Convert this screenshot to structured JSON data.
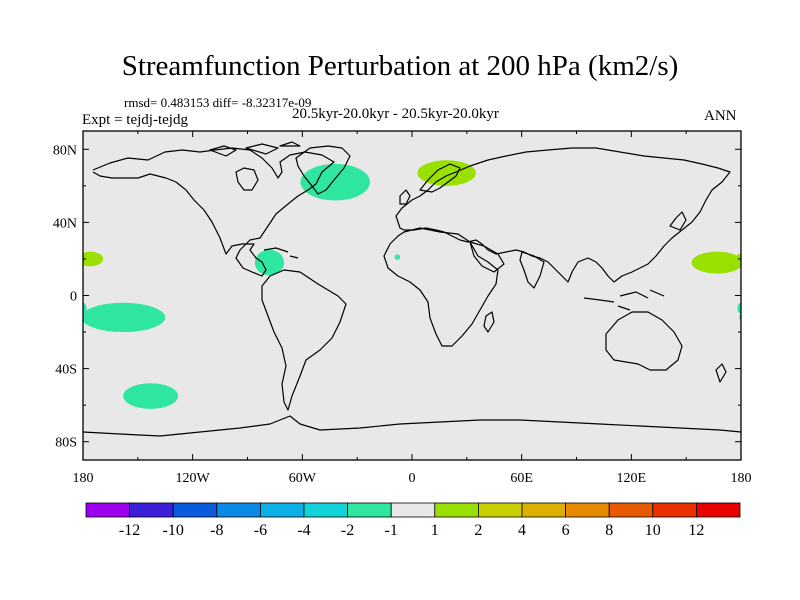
{
  "title": "Streamfunction Perturbation at 200 hPa (km2/s)",
  "stats": "rmsd= 0.483153 diff= -8.32317e-09",
  "period": "20.5kyr-20.0kyr - 20.5kyr-20.0kyr",
  "experiment": "Expt = tejdj-tejdg",
  "season": "ANN",
  "colors": {
    "background": "#e8e8e8",
    "coastline": "#000000",
    "negative_small": "#2ee6a0",
    "positive_small": "#99e000"
  },
  "axes": {
    "latitude_ticks": [
      "80N",
      "40N",
      "0",
      "40S",
      "80S"
    ],
    "longitude_ticks": [
      "180",
      "120W",
      "60W",
      "0",
      "60E",
      "120E",
      "180"
    ]
  },
  "colorbar": {
    "labels": [
      "-12",
      "-10",
      "-8",
      "-6",
      "-4",
      "-2",
      "-1",
      "1",
      "2",
      "4",
      "6",
      "8",
      "10",
      "12"
    ],
    "colors": [
      "#9c00ee",
      "#3a1ed8",
      "#0a5ae0",
      "#0a8ae6",
      "#0ab0e6",
      "#12d4d8",
      "#2ee6a0",
      "#e8e8e8",
      "#99e000",
      "#c8d000",
      "#dcb000",
      "#e88a00",
      "#e85a00",
      "#e83000",
      "#e80000"
    ]
  },
  "anomalies": [
    {
      "name": "north-atlantic-negative",
      "lon": -42,
      "lat": 62,
      "rlon": 19,
      "rlat": 10,
      "sign": "negative"
    },
    {
      "name": "central-america-negative",
      "lon": -78,
      "lat": 18,
      "rlon": 8,
      "rlat": 7,
      "sign": "negative"
    },
    {
      "name": "east-pacific-tropical-negative",
      "lon": -158,
      "lat": -12,
      "rlon": 23,
      "rlat": 8,
      "sign": "negative"
    },
    {
      "name": "south-pacific-negative",
      "lon": -143,
      "lat": -55,
      "rlon": 15,
      "rlat": 7,
      "sign": "negative"
    },
    {
      "name": "west-africa-negative",
      "lon": -8,
      "lat": 21,
      "rlon": 1.5,
      "rlat": 1.5,
      "sign": "negative"
    },
    {
      "name": "west-pacific-edge-negative",
      "lon": 180,
      "lat": -7,
      "rlon": 2,
      "rlat": 3,
      "sign": "negative"
    },
    {
      "name": "scandinavia-positive",
      "lon": 19,
      "lat": 67,
      "rlon": 16,
      "rlat": 7,
      "sign": "positive"
    },
    {
      "name": "northwest-pacific-positive",
      "lon": 167,
      "lat": 18,
      "rlon": 14,
      "rlat": 6,
      "sign": "positive"
    },
    {
      "name": "northeast-pacific-positive",
      "lon": -176,
      "lat": 20,
      "rlon": 7,
      "rlat": 4,
      "sign": "positive"
    }
  ]
}
